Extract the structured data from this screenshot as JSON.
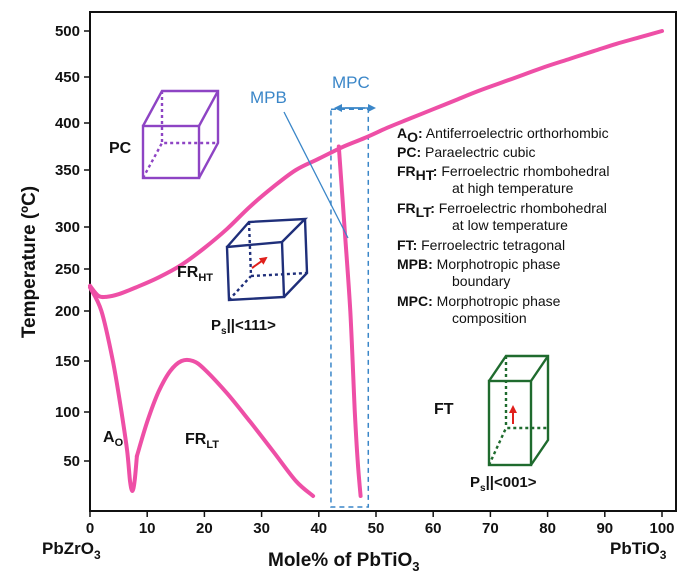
{
  "chart_data": {
    "type": "line",
    "title": "",
    "xlabel": "Mole% of PbTiO",
    "xlabel_sub": "3",
    "ylabel": "Temperature (ºC)",
    "xlim": [
      0,
      100
    ],
    "x_ticks": [
      0,
      10,
      20,
      30,
      40,
      50,
      60,
      70,
      80,
      90,
      100
    ],
    "x_tick_labels": [
      "0",
      "10",
      "20",
      "30",
      "40",
      "50",
      "60",
      "70",
      "80",
      "90",
      "100"
    ],
    "y_ticks": [
      50,
      100,
      150,
      200,
      250,
      300,
      350,
      400,
      450,
      500
    ],
    "y_tick_labels": [
      "50",
      "100",
      "150",
      "200",
      "250",
      "300",
      "350",
      "400",
      "450",
      "500"
    ],
    "end_labels": {
      "left": {
        "main": "PbZrO",
        "sub": "3"
      },
      "right": {
        "main": "PbTiO",
        "sub": "3"
      }
    },
    "line_color": "#ee4fa6",
    "series": [
      {
        "x": [
          0,
          1.5,
          3,
          5,
          8,
          12,
          16,
          20,
          24,
          28,
          32,
          36,
          40,
          44,
          48,
          52,
          56,
          60,
          64,
          68,
          72,
          76,
          80,
          84,
          88,
          92,
          96,
          100
        ],
        "y": [
          230,
          218,
          217,
          220,
          228,
          240,
          255,
          275,
          298,
          318,
          335,
          350,
          362,
          374,
          384,
          395,
          405,
          415,
          425,
          435,
          444,
          453,
          462,
          470,
          478,
          486,
          493,
          500
        ]
      },
      {
        "x": [
          0,
          2,
          4,
          5.5,
          6.5,
          7,
          7.4,
          7.8,
          8.2
        ],
        "y": [
          228,
          200,
          150,
          100,
          60,
          30,
          20,
          30,
          55
        ]
      },
      {
        "x": [
          8.2,
          10,
          12,
          14,
          16,
          18,
          20,
          24,
          28,
          32,
          36,
          39
        ],
        "y": [
          55,
          90,
          120,
          140,
          150,
          150,
          142,
          118,
          90,
          60,
          30,
          15
        ]
      },
      {
        "x": [
          43.5,
          44.5,
          45.5,
          46.3,
          46.8,
          47.3
        ],
        "y": [
          375,
          300,
          200,
          100,
          50,
          15
        ]
      }
    ],
    "mpc_region": {
      "x": [
        43,
        49
      ],
      "y": [
        10,
        415
      ]
    },
    "mpc_label": "MPC",
    "mpb_label": "MPB",
    "phase_labels": {
      "pc": "PC",
      "fr_ht": {
        "main": "FR",
        "sub": "HT"
      },
      "fr_lt": {
        "main": "FR",
        "sub": "LT"
      },
      "ao": {
        "main": "A",
        "sub": "O"
      },
      "ft": "FT",
      "ps_111": {
        "main": "P",
        "sub": "s",
        "rest": "||<111>"
      },
      "ps_001": {
        "main": "P",
        "sub": "s",
        "rest": "||<001>"
      }
    },
    "legend": [
      {
        "key": "A",
        "key_sub": "O",
        "desc": "Antiferroelectric orthorhombic",
        "desc2": ""
      },
      {
        "key": "PC",
        "key_sub": "",
        "desc": "Paraelectric cubic",
        "desc2": ""
      },
      {
        "key": "FR",
        "key_sub": "HT",
        "desc": "Ferroelectric rhombohedral",
        "desc2": "at high temperature"
      },
      {
        "key": "FR",
        "key_sub": "LT",
        "desc": "Ferroelectric rhombohedral",
        "desc2": "at low temperature"
      },
      {
        "key": "FT",
        "key_sub": "",
        "desc": "Ferroelectric tetragonal",
        "desc2": ""
      },
      {
        "key": "MPB",
        "key_sub": "",
        "desc": "Morphotropic  phase",
        "desc2": "boundary"
      },
      {
        "key": "MPC",
        "key_sub": "",
        "desc": "Morphotropic  phase",
        "desc2": "composition"
      }
    ],
    "cube_colors": {
      "pc": "#8e44c4",
      "rhombo": "#1f2f7a",
      "tetra": "#1f6b2e",
      "arrow": "#e0201c"
    }
  }
}
